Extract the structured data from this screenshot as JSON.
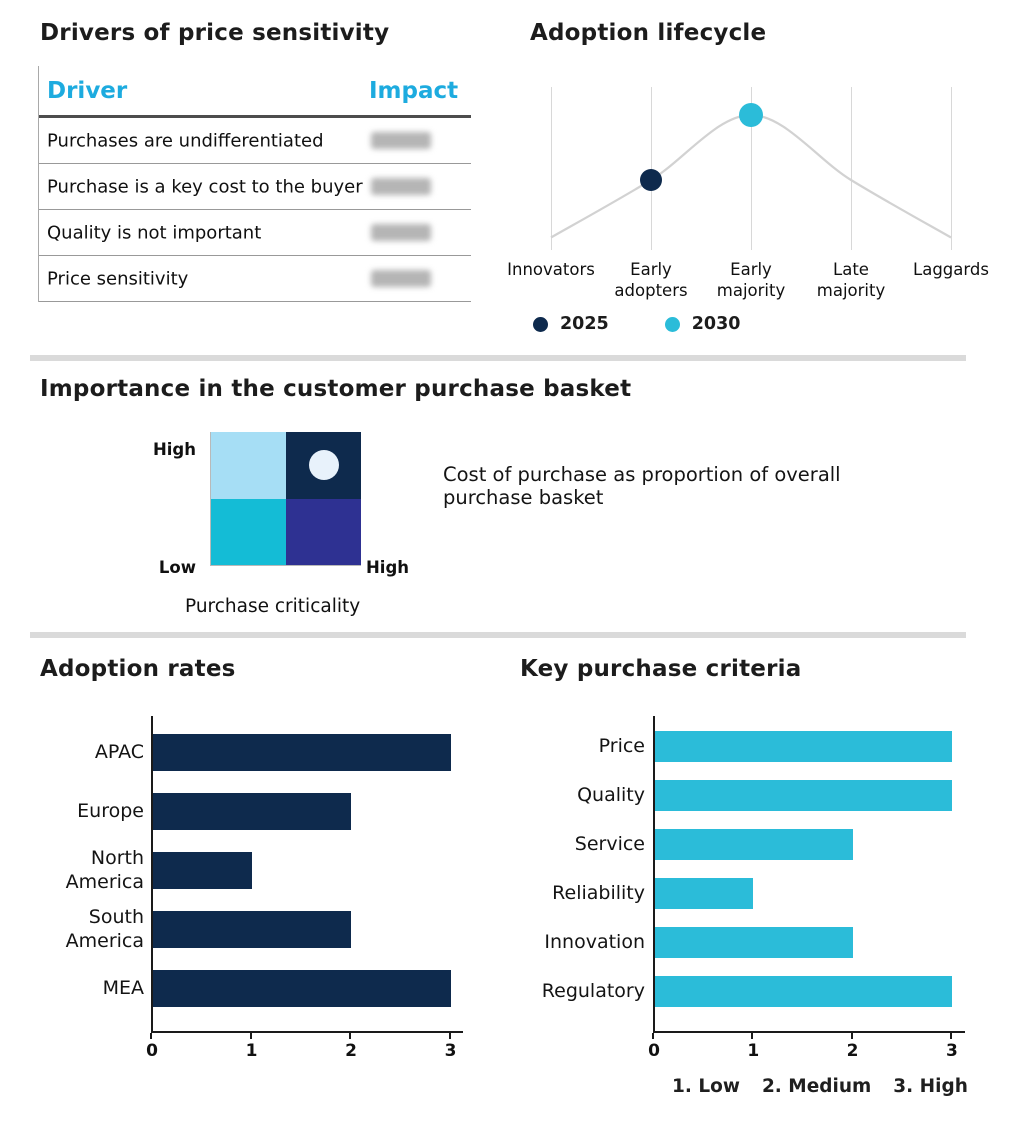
{
  "palette": {
    "navy": "#0e2a4d",
    "cyan": "#2bbcd9",
    "header_cyan": "#1dabdf",
    "curve": "#d2d2d2",
    "divider": "#dadada",
    "redacted_blob": "#b5b5b5"
  },
  "chart_data": [
    {
      "id": "drivers-of-price-sensitivity",
      "type": "table",
      "title": "Drivers of price sensitivity",
      "columns": [
        "Driver",
        "Impact"
      ],
      "rows": [
        "Purchases are undifferentiated",
        "Purchase is a key cost to the buyer",
        "Quality is not important",
        "Price sensitivity"
      ],
      "impact_values_redacted": true
    },
    {
      "id": "adoption-lifecycle",
      "type": "line",
      "title": "Adoption lifecycle",
      "categories": [
        "Innovators",
        "Early adopters",
        "Early majority",
        "Late majority",
        "Laggards"
      ],
      "curve_normalized": [
        0.02,
        0.48,
        1,
        0.48,
        0.02
      ],
      "markers": [
        {
          "label": "2025",
          "category": "Early adopters",
          "category_index": 1,
          "color": "#0e2a4d"
        },
        {
          "label": "2030",
          "category": "Early majority",
          "category_index": 2,
          "color": "#2bbcd9"
        }
      ],
      "legend": [
        {
          "label": "2025",
          "color": "#0e2a4d"
        },
        {
          "label": "2030",
          "color": "#2bbcd9"
        }
      ],
      "grid": "vertical"
    },
    {
      "id": "purchase-basket-matrix",
      "type": "heatmap",
      "title": "Importance in the customer purchase basket",
      "y_axis_top": "High",
      "y_axis_bottom": "Low",
      "x_axis_right": "High",
      "x_axis_label": "Purchase criticality",
      "annotation": "Cost of purchase as proportion of overall purchase basket",
      "cells": [
        {
          "pos": "top-left",
          "color": "#a6def5"
        },
        {
          "pos": "top-right",
          "color": "#0e2a4d",
          "dot": true,
          "dot_color": "#e8f2fb"
        },
        {
          "pos": "bottom-left",
          "color": "#14bcd6"
        },
        {
          "pos": "bottom-right",
          "color": "#2e3192"
        }
      ]
    },
    {
      "id": "adoption-rates",
      "type": "bar",
      "orientation": "horizontal",
      "title": "Adoption rates",
      "categories": [
        "APAC",
        "Europe",
        "North America",
        "South America",
        "MEA"
      ],
      "values": [
        3,
        2,
        1,
        2,
        3
      ],
      "xlim": [
        0,
        3
      ],
      "xticks": [
        "0",
        "1",
        "2",
        "3"
      ],
      "bar_color": "#0e2a4d"
    },
    {
      "id": "key-purchase-criteria",
      "type": "bar",
      "orientation": "horizontal",
      "title": "Key purchase criteria",
      "categories": [
        "Price",
        "Quality",
        "Service",
        "Reliability",
        "Innovation",
        "Regulatory"
      ],
      "values": [
        3,
        3,
        2,
        1,
        2,
        3
      ],
      "xlim": [
        0,
        3
      ],
      "xticks": [
        "0",
        "1",
        "2",
        "3"
      ],
      "bar_color": "#2bbcd9",
      "scale_legend": [
        "1. Low",
        "2. Medium",
        "3. High"
      ]
    }
  ]
}
